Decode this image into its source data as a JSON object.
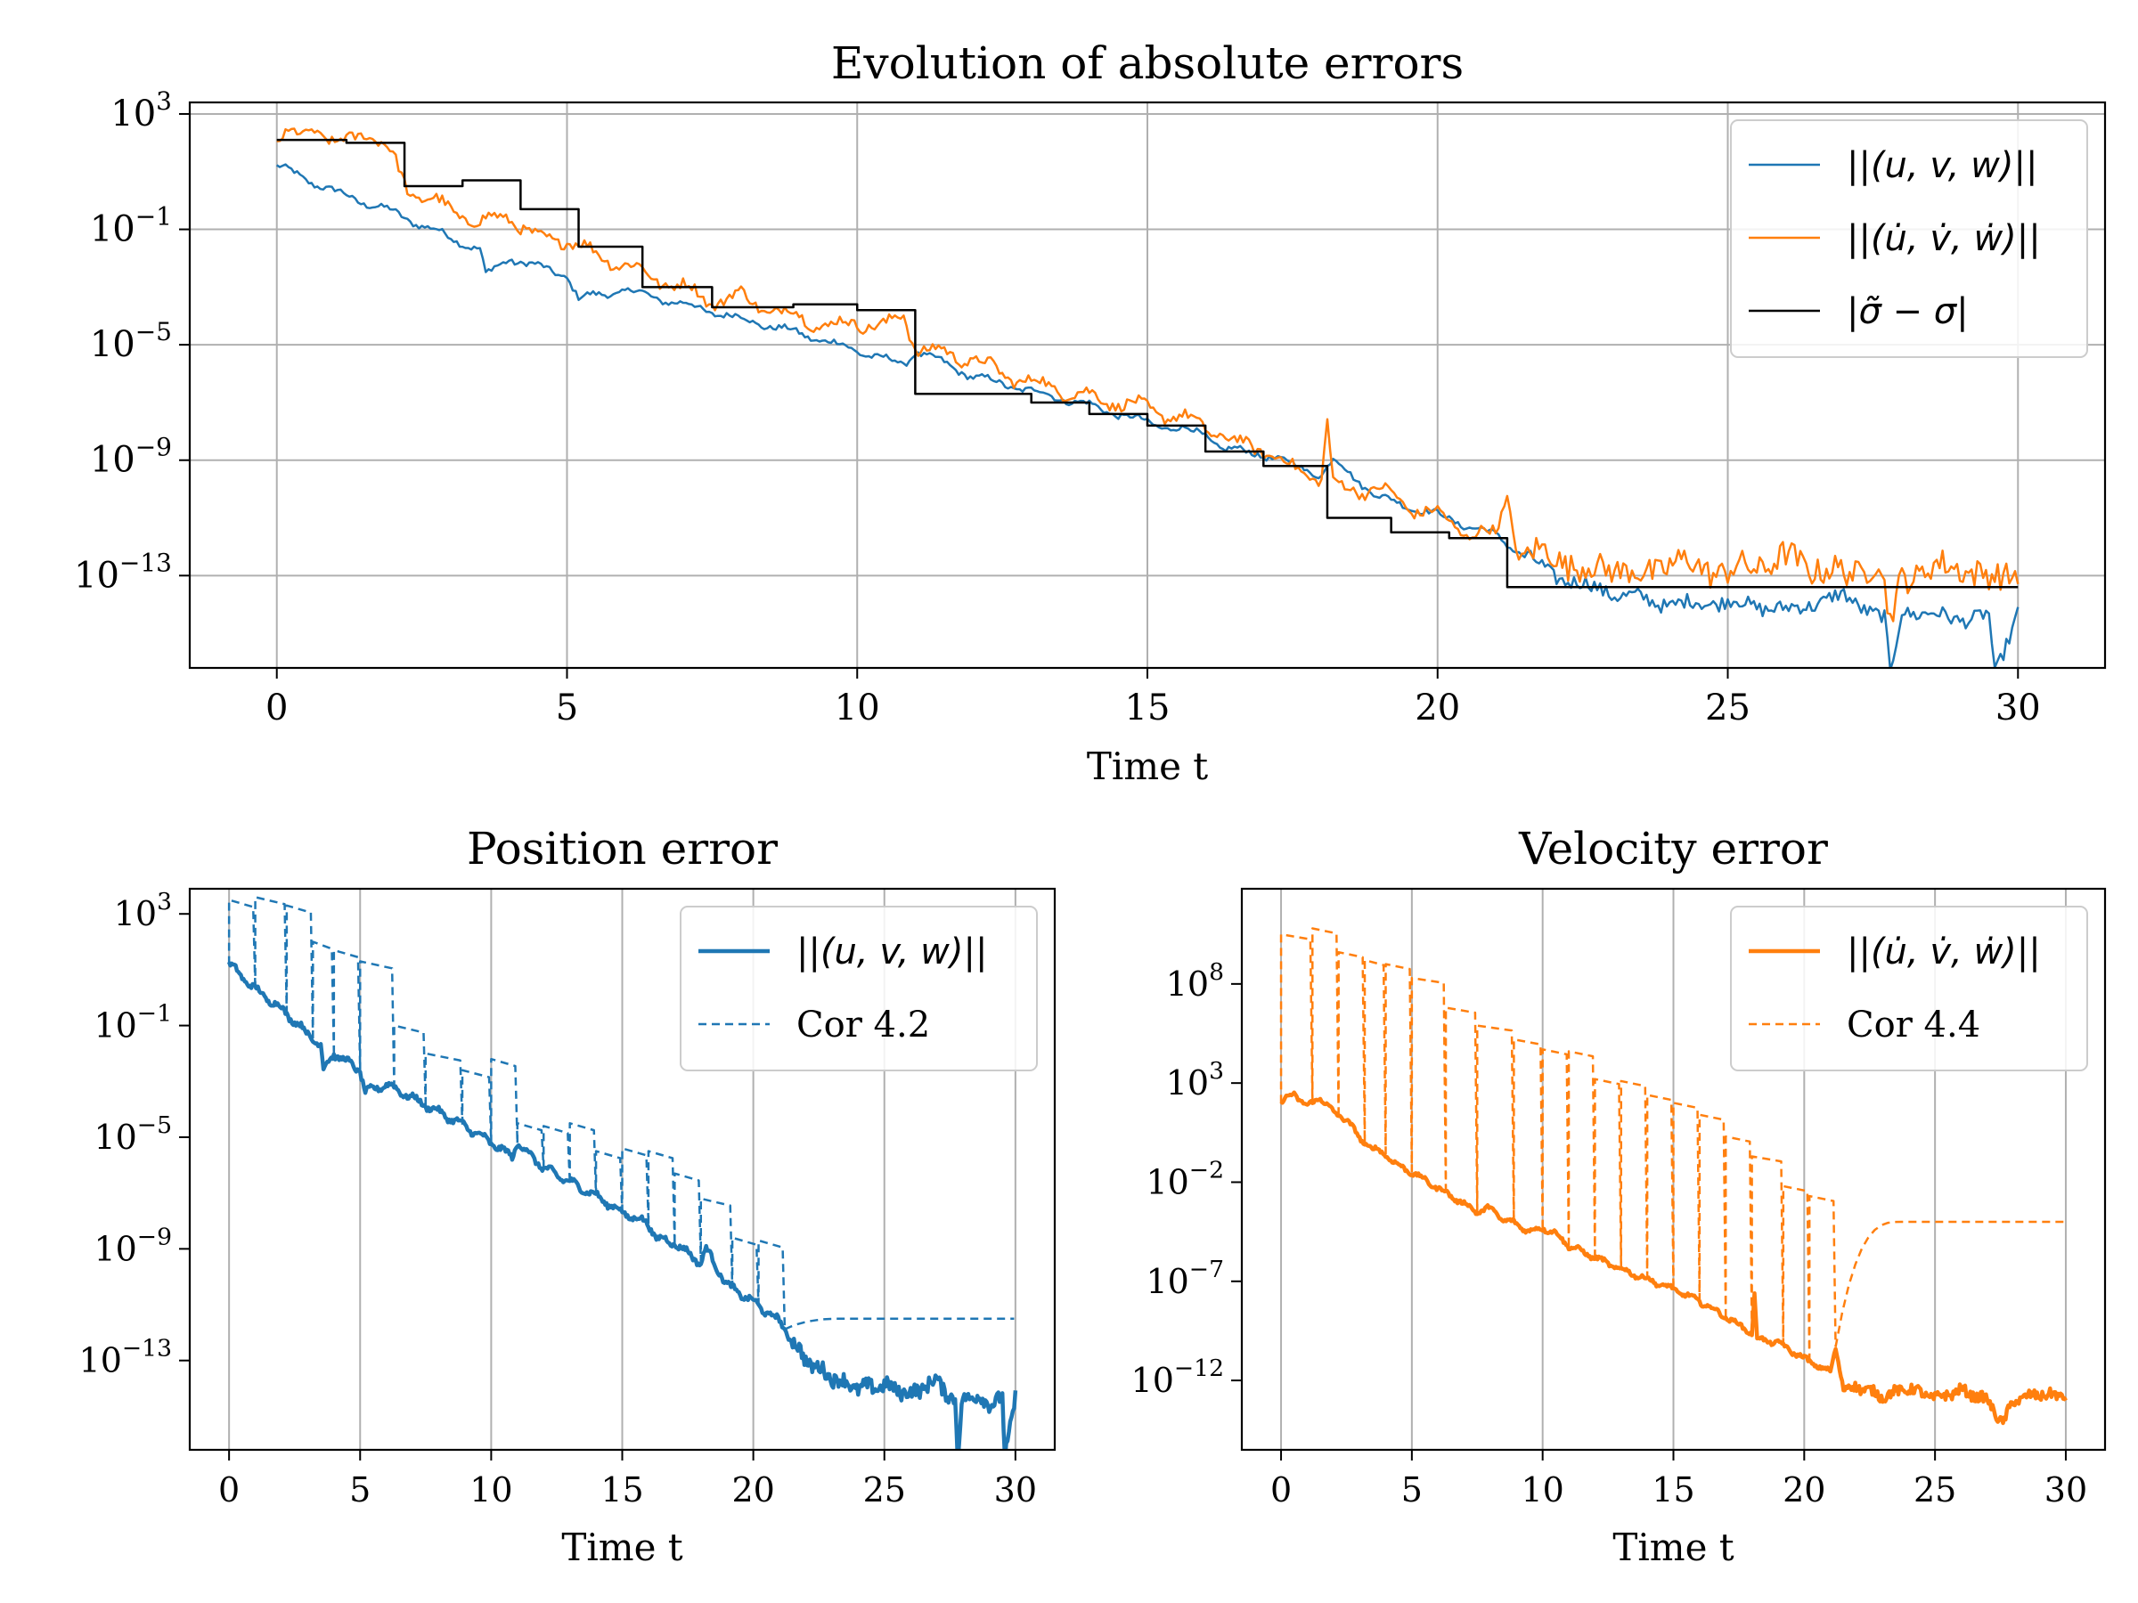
{
  "colors": {
    "position": "#1f77b4",
    "velocity": "#ff7f0e",
    "sigma": "#000000",
    "grid": "#b0b0b0"
  },
  "chart_data": [
    {
      "id": "top",
      "type": "line",
      "title": "Evolution of absolute errors",
      "xlabel": "Time t",
      "ylabel": "",
      "yscale": "log",
      "xlim": [
        -1.5,
        31.5
      ],
      "ylim_log10": [
        -16.2,
        3.4
      ],
      "grid": true,
      "legend_position": "top-right",
      "xticks": [
        "0",
        "5",
        "10",
        "15",
        "20",
        "25",
        "30"
      ],
      "yticks": [
        {
          "base": "10",
          "exp": "3"
        },
        {
          "base": "10",
          "exp": "−1"
        },
        {
          "base": "10",
          "exp": "−5"
        },
        {
          "base": "10",
          "exp": "−9"
        },
        {
          "base": "10",
          "exp": "−13"
        }
      ],
      "series": [
        {
          "name": "||(u, v, w)||",
          "style": "solid",
          "x": [
            0,
            1,
            2,
            3,
            3.5,
            3.6,
            4,
            5,
            5.2,
            6,
            7,
            8,
            9,
            10,
            10.8,
            11,
            12,
            13,
            14,
            15,
            16,
            16.3,
            17,
            18,
            18.2,
            19,
            20,
            21,
            21.5,
            22,
            23,
            24,
            25,
            26,
            27,
            27.7,
            27.8,
            28,
            29,
            29.5,
            29.6,
            30
          ],
          "log10_values": [
            1.2,
            0.3,
            -0.4,
            -1.3,
            -1.7,
            -2.6,
            -2.0,
            -2.6,
            -3.4,
            -3.1,
            -3.6,
            -4.1,
            -4.6,
            -5.2,
            -5.7,
            -5.2,
            -6.1,
            -6.6,
            -7.1,
            -7.7,
            -8.1,
            -8.6,
            -8.8,
            -9.5,
            -9.0,
            -10.3,
            -10.9,
            -11.6,
            -12.3,
            -13.0,
            -13.6,
            -14.0,
            -13.9,
            -14.2,
            -13.7,
            -14.5,
            -16.5,
            -14.2,
            -14.5,
            -14.4,
            -16.5,
            -14.2
          ]
        },
        {
          "name": "||(u̇, v̇, ẇ)||",
          "style": "solid",
          "x": [
            0,
            0.5,
            0.6,
            1,
            1.5,
            2,
            2.3,
            3,
            3.5,
            4,
            4.5,
            5,
            5.5,
            6,
            6.5,
            7,
            7.5,
            8,
            8.5,
            9,
            9.5,
            10,
            10.5,
            10.8,
            11,
            11.5,
            12,
            12.5,
            13,
            14,
            15,
            16,
            16.5,
            17,
            17.5,
            18,
            18.1,
            18.2,
            18.4,
            19,
            19.5,
            20,
            20.5,
            21,
            21.2,
            21.4,
            22,
            22.5,
            23,
            23.5,
            24,
            25,
            26,
            27,
            27.6,
            27.8,
            28,
            29,
            29.5,
            30
          ],
          "log10_values": [
            2.0,
            2.4,
            2.7,
            1.8,
            2.5,
            1.5,
            0.3,
            -0.3,
            -0.8,
            -0.5,
            -1.4,
            -1.3,
            -1.9,
            -2.2,
            -2.7,
            -3.0,
            -3.5,
            -3.3,
            -3.8,
            -4.0,
            -4.4,
            -4.2,
            -4.4,
            -3.9,
            -5.1,
            -5.3,
            -5.5,
            -6.0,
            -6.3,
            -6.8,
            -7.2,
            -7.8,
            -8.4,
            -8.6,
            -9.3,
            -9.6,
            -7.6,
            -9.9,
            -10.0,
            -10.0,
            -10.6,
            -10.9,
            -11.5,
            -11.6,
            -10.2,
            -12.3,
            -12.2,
            -12.9,
            -12.6,
            -13.1,
            -12.5,
            -12.9,
            -12.4,
            -13.0,
            -12.5,
            -14.7,
            -13.0,
            -12.6,
            -13.2,
            -12.7
          ]
        },
        {
          "name": "|σ̃ − σ|",
          "style": "step",
          "steps": [
            {
              "x0": 0,
              "x1": 1.2,
              "log10": 2.1
            },
            {
              "x0": 1.2,
              "x1": 2.2,
              "log10": 2.0
            },
            {
              "x0": 2.2,
              "x1": 3.2,
              "log10": 0.5
            },
            {
              "x0": 3.2,
              "x1": 4.2,
              "log10": 0.7
            },
            {
              "x0": 4.2,
              "x1": 5.2,
              "log10": -0.3
            },
            {
              "x0": 5.2,
              "x1": 6.3,
              "log10": -1.6
            },
            {
              "x0": 6.3,
              "x1": 7.5,
              "log10": -3.0
            },
            {
              "x0": 7.5,
              "x1": 8.9,
              "log10": -3.7
            },
            {
              "x0": 8.9,
              "x1": 10.0,
              "log10": -3.6
            },
            {
              "x0": 10.0,
              "x1": 11.0,
              "log10": -3.8
            },
            {
              "x0": 11.0,
              "x1": 13.0,
              "log10": -6.7
            },
            {
              "x0": 13.0,
              "x1": 14.0,
              "log10": -7.0
            },
            {
              "x0": 14.0,
              "x1": 15.0,
              "log10": -7.4
            },
            {
              "x0": 15.0,
              "x1": 16.0,
              "log10": -7.8
            },
            {
              "x0": 16.0,
              "x1": 17.0,
              "log10": -8.7
            },
            {
              "x0": 17.0,
              "x1": 18.1,
              "log10": -9.2
            },
            {
              "x0": 18.1,
              "x1": 19.2,
              "log10": -11.0
            },
            {
              "x0": 19.2,
              "x1": 20.2,
              "log10": -11.5
            },
            {
              "x0": 20.2,
              "x1": 21.2,
              "log10": -11.7
            },
            {
              "x0": 21.2,
              "x1": 30.0,
              "log10": -13.4
            }
          ]
        }
      ]
    },
    {
      "id": "position",
      "type": "line",
      "title": "Position error",
      "xlabel": "Time t",
      "ylabel": "",
      "yscale": "log",
      "xlim": [
        -1.5,
        31.5
      ],
      "ylim_log10": [
        -16.2,
        3.9
      ],
      "grid": "x-only",
      "legend_position": "top-right",
      "xticks": [
        "0",
        "5",
        "10",
        "15",
        "20",
        "25",
        "30"
      ],
      "yticks": [
        {
          "base": "10",
          "exp": "3"
        },
        {
          "base": "10",
          "exp": "−1"
        },
        {
          "base": "10",
          "exp": "−5"
        },
        {
          "base": "10",
          "exp": "−9"
        },
        {
          "base": "10",
          "exp": "−13"
        }
      ],
      "series": [
        {
          "name": "||(u, v, w)||",
          "style": "solid-thick",
          "x": [
            0,
            1,
            2,
            3,
            3.5,
            3.6,
            4,
            5,
            5.2,
            6,
            7,
            8,
            9,
            10,
            10.8,
            11,
            12,
            13,
            14,
            15,
            16,
            16.3,
            17,
            18,
            18.2,
            19,
            20,
            21,
            21.5,
            22,
            23,
            24,
            25,
            26,
            27,
            27.7,
            27.8,
            28,
            29,
            29.5,
            29.6,
            30
          ],
          "log10_values": [
            1.2,
            0.3,
            -0.4,
            -1.3,
            -1.7,
            -2.6,
            -2.0,
            -2.6,
            -3.4,
            -3.1,
            -3.6,
            -4.1,
            -4.6,
            -5.2,
            -5.7,
            -5.2,
            -6.1,
            -6.6,
            -7.1,
            -7.7,
            -8.1,
            -8.6,
            -8.8,
            -9.5,
            -9.0,
            -10.3,
            -10.9,
            -11.6,
            -12.3,
            -13.0,
            -13.6,
            -14.0,
            -13.9,
            -14.2,
            -13.7,
            -14.5,
            -16.5,
            -14.2,
            -14.5,
            -14.4,
            -16.5,
            -14.2
          ]
        },
        {
          "name": "Cor 4.2",
          "style": "dashed",
          "restarts": [
            0.0,
            1.0,
            2.2,
            3.2,
            4.0,
            5.0,
            6.3,
            7.5,
            8.9,
            10.0,
            11.0,
            12.0,
            13.0,
            14.0,
            15.0,
            16.0,
            17.0,
            18.0,
            19.2,
            20.2,
            21.2
          ],
          "peaks_log10": [
            3.5,
            3.6,
            3.3,
            2.0,
            1.7,
            1.3,
            -1.0,
            -2.0,
            -2.6,
            -2.2,
            -4.5,
            -4.6,
            -4.5,
            -5.5,
            -5.4,
            -5.5,
            -6.3,
            -7.2,
            -8.6,
            -8.7,
            -9.5
          ],
          "plateau_log10": -11.5,
          "plateau_end_x": 30
        }
      ]
    },
    {
      "id": "velocity",
      "type": "line",
      "title": "Velocity error",
      "xlabel": "Time t",
      "ylabel": "",
      "yscale": "log",
      "xlim": [
        -1.5,
        31.5
      ],
      "ylim_log10": [
        -15.5,
        12.8
      ],
      "grid": "x-only",
      "legend_position": "top-right",
      "xticks": [
        "0",
        "5",
        "10",
        "15",
        "20",
        "25",
        "30"
      ],
      "yticks": [
        {
          "base": "10",
          "exp": "8"
        },
        {
          "base": "10",
          "exp": "3"
        },
        {
          "base": "10",
          "exp": "−2"
        },
        {
          "base": "10",
          "exp": "−7"
        },
        {
          "base": "10",
          "exp": "−12"
        }
      ],
      "series": [
        {
          "name": "||(u̇, v̇, ẇ)||",
          "style": "solid-thick",
          "x": [
            0,
            0.5,
            1,
            1.5,
            2,
            2.5,
            3,
            3.5,
            4,
            4.5,
            5,
            5.5,
            6,
            6.5,
            7,
            7.5,
            8,
            8.5,
            9,
            9.5,
            10,
            10.5,
            11,
            11.5,
            12,
            13,
            14,
            15,
            16,
            17,
            18,
            18.1,
            18.2,
            19,
            20,
            21,
            21.2,
            21.5,
            22,
            23,
            24,
            25,
            26,
            27,
            27.6,
            28,
            29,
            30
          ],
          "log10_values": [
            2.0,
            2.5,
            1.8,
            2.3,
            1.5,
            1.2,
            0.2,
            -0.3,
            -0.6,
            -1.2,
            -1.5,
            -1.9,
            -2.3,
            -2.7,
            -3.1,
            -3.5,
            -3.3,
            -3.9,
            -4.1,
            -4.5,
            -4.3,
            -4.6,
            -5.2,
            -5.5,
            -5.8,
            -6.4,
            -6.9,
            -7.4,
            -8.0,
            -8.8,
            -9.6,
            -7.7,
            -9.9,
            -10.1,
            -10.9,
            -11.6,
            -10.3,
            -12.4,
            -12.3,
            -12.8,
            -12.4,
            -12.9,
            -12.5,
            -13.0,
            -14.2,
            -13.0,
            -12.7,
            -12.8
          ]
        },
        {
          "name": "Cor 4.4",
          "style": "dashed",
          "restarts": [
            0.0,
            1.2,
            2.2,
            3.2,
            4.0,
            5.0,
            6.3,
            7.5,
            8.9,
            10.0,
            11.0,
            12.0,
            13.0,
            14.0,
            15.0,
            16.0,
            17.0,
            18.0,
            19.2,
            20.2,
            21.2
          ],
          "peaks_log10": [
            10.5,
            10.8,
            9.6,
            9.2,
            9.0,
            8.3,
            6.8,
            5.9,
            5.2,
            4.7,
            4.6,
            3.2,
            3.1,
            2.4,
            2.0,
            1.4,
            0.3,
            -0.7,
            -2.2,
            -2.7,
            -3.4
          ],
          "plateau_log10": -4.0,
          "plateau_end_x": 30
        }
      ]
    }
  ]
}
